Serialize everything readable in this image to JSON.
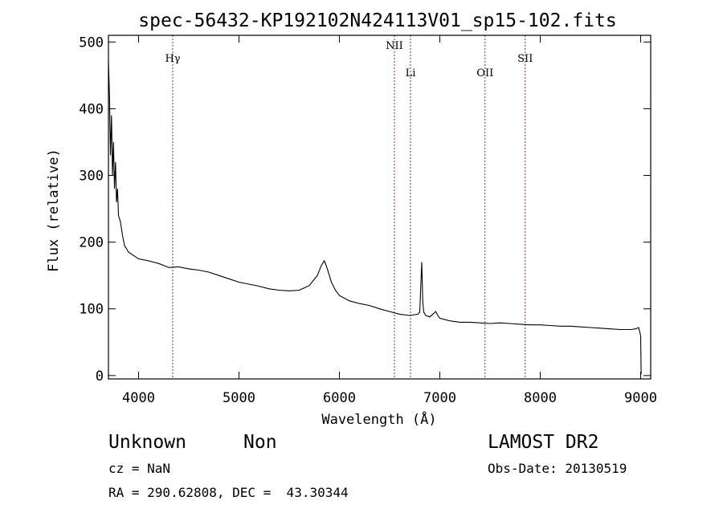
{
  "chart_data": {
    "type": "line",
    "title": "spec-56432-KP192102N424113V01_sp15-102.fits",
    "xlabel": "Wavelength (Å)",
    "ylabel": "Flux (relative)",
    "xlim": [
      3700,
      9100
    ],
    "ylim": [
      -5,
      510
    ],
    "x_ticks": [
      4000,
      5000,
      6000,
      7000,
      8000,
      9000
    ],
    "y_ticks": [
      0,
      100,
      200,
      300,
      400,
      500
    ],
    "grid": false,
    "lines": [
      {
        "name": "Hγ",
        "x": 4340
      },
      {
        "name": "NII",
        "x": 6548
      },
      {
        "name": "Li",
        "x": 6708
      },
      {
        "name": "OII",
        "x": 7450
      },
      {
        "name": "SII",
        "x": 7850
      }
    ],
    "series": [
      {
        "x": [
          3700,
          3710,
          3720,
          3730,
          3740,
          3750,
          3760,
          3770,
          3780,
          3790,
          3800,
          3820,
          3840,
          3860,
          3880,
          3900,
          3950,
          4000,
          4100,
          4200,
          4300,
          4400,
          4500,
          4600,
          4700,
          4800,
          4900,
          5000,
          5100,
          5200,
          5300,
          5400,
          5500,
          5600,
          5700,
          5780,
          5820,
          5850,
          5880,
          5920,
          5960,
          6000,
          6100,
          6200,
          6300,
          6400,
          6500,
          6600,
          6700,
          6780,
          6800,
          6820,
          6830,
          6840,
          6860,
          6900,
          6960,
          6980,
          7000,
          7100,
          7200,
          7300,
          7400,
          7500,
          7600,
          7700,
          7800,
          7900,
          8000,
          8100,
          8200,
          8300,
          8400,
          8500,
          8600,
          8700,
          8800,
          8900,
          8950,
          8980,
          9000,
          9005
        ],
        "values": [
          470,
          420,
          330,
          390,
          300,
          350,
          280,
          320,
          260,
          280,
          240,
          230,
          210,
          195,
          190,
          185,
          180,
          175,
          172,
          168,
          162,
          163,
          160,
          158,
          155,
          150,
          145,
          140,
          137,
          134,
          130,
          128,
          127,
          128,
          135,
          150,
          165,
          172,
          160,
          140,
          128,
          120,
          112,
          108,
          105,
          100,
          96,
          92,
          90,
          92,
          95,
          170,
          110,
          95,
          90,
          88,
          96,
          90,
          86,
          82,
          80,
          80,
          79,
          78,
          79,
          78,
          77,
          76,
          76,
          75,
          74,
          74,
          73,
          72,
          71,
          70,
          69,
          69,
          70,
          72,
          60,
          2
        ]
      }
    ]
  },
  "footer": {
    "class_label": "Unknown",
    "subclass_label": "Non",
    "survey": "LAMOST DR2",
    "cz": "cz = NaN",
    "obs_date": "Obs-Date: 20130519",
    "coords": "RA = 290.62808, DEC =  43.30344"
  }
}
